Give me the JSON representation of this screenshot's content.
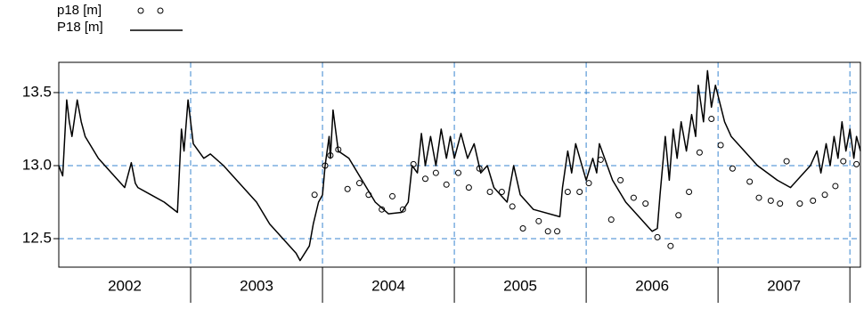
{
  "chart_data": {
    "type": "line",
    "xlim": [
      2002,
      2008.08
    ],
    "ylim": [
      12.305,
      13.707
    ],
    "yticks": [
      12.5,
      {
        "value": 13,
        "label": "13.0"
      },
      13.5
    ],
    "xticks": [
      {
        "value": 2002.5,
        "label": "2002"
      },
      {
        "value": 2003.5,
        "label": "2003"
      },
      {
        "value": 2004.5,
        "label": "2004"
      },
      {
        "value": 2005.5,
        "label": "2005"
      },
      {
        "value": 2006.5,
        "label": "2006"
      },
      {
        "value": 2007.5,
        "label": "2007"
      }
    ],
    "xgrid": [
      2003,
      2004,
      2005,
      2006,
      2007,
      2008
    ],
    "grid": true,
    "grid_color": "#3a86d0",
    "series": [
      {
        "name": "p18 [m]",
        "type": "scatter",
        "color": "#000000",
        "x": [
          2003.94,
          2004.02,
          2004.06,
          2004.12,
          2004.19,
          2004.28,
          2004.35,
          2004.45,
          2004.53,
          2004.61,
          2004.69,
          2004.78,
          2004.86,
          2004.94,
          2005.03,
          2005.11,
          2005.19,
          2005.27,
          2005.36,
          2005.44,
          2005.52,
          2005.64,
          2005.71,
          2005.78,
          2005.86,
          2005.95,
          2006.02,
          2006.11,
          2006.19,
          2006.26,
          2006.36,
          2006.45,
          2006.54,
          2006.64,
          2006.7,
          2006.78,
          2006.86,
          2006.95,
          2007.02,
          2007.11,
          2007.24,
          2007.31,
          2007.4,
          2007.47,
          2007.52,
          2007.62,
          2007.72,
          2007.81,
          2007.89,
          2007.95,
          2008.05
        ],
        "values": [
          12.8,
          13.0,
          13.07,
          13.11,
          12.84,
          12.88,
          12.8,
          12.7,
          12.79,
          12.7,
          13.01,
          12.91,
          12.95,
          12.87,
          12.95,
          12.85,
          12.98,
          12.82,
          12.82,
          12.72,
          12.57,
          12.62,
          12.55,
          12.55,
          12.82,
          12.82,
          12.88,
          13.04,
          12.63,
          12.9,
          12.78,
          12.74,
          12.51,
          12.45,
          12.66,
          12.82,
          13.09,
          13.32,
          13.14,
          12.98,
          12.89,
          12.78,
          12.76,
          12.74,
          13.03,
          12.74,
          12.76,
          12.8,
          12.86,
          13.03,
          13.01
        ]
      },
      {
        "name": "P18 [m]",
        "type": "line",
        "color": "#000000",
        "x": [
          2002.0,
          2002.03,
          2002.06,
          2002.08,
          2002.1,
          2002.14,
          2002.17,
          2002.2,
          2002.3,
          2002.4,
          2002.5,
          2002.55,
          2002.58,
          2002.6,
          2002.7,
          2002.8,
          2002.9,
          2002.93,
          2002.95,
          2002.98,
          2003.02,
          2003.1,
          2003.15,
          2003.25,
          2003.4,
          2003.5,
          2003.6,
          2003.7,
          2003.8,
          2003.83,
          2003.9,
          2003.93,
          2003.97,
          2004.0,
          2004.02,
          2004.05,
          2004.06,
          2004.08,
          2004.12,
          2004.2,
          2004.3,
          2004.4,
          2004.5,
          2004.6,
          2004.65,
          2004.68,
          2004.72,
          2004.75,
          2004.78,
          2004.82,
          2004.86,
          2004.9,
          2004.94,
          2004.97,
          2005.0,
          2005.05,
          2005.1,
          2005.15,
          2005.2,
          2005.25,
          2005.3,
          2005.4,
          2005.45,
          2005.5,
          2005.6,
          2005.8,
          2005.82,
          2005.86,
          2005.89,
          2005.92,
          2006.0,
          2006.05,
          2006.08,
          2006.1,
          2006.2,
          2006.3,
          2006.4,
          2006.5,
          2006.54,
          2006.56,
          2006.6,
          2006.63,
          2006.66,
          2006.69,
          2006.72,
          2006.76,
          2006.8,
          2006.83,
          2006.85,
          2006.89,
          2006.92,
          2006.95,
          2006.98,
          2007.05,
          2007.1,
          2007.2,
          2007.3,
          2007.45,
          2007.55,
          2007.65,
          2007.7,
          2007.75,
          2007.78,
          2007.82,
          2007.85,
          2007.88,
          2007.91,
          2007.94,
          2007.97,
          2008.0,
          2008.03,
          2008.05,
          2008.08
        ],
        "values": [
          13.0,
          12.93,
          13.45,
          13.3,
          13.2,
          13.45,
          13.3,
          13.2,
          13.05,
          12.95,
          12.85,
          13.02,
          12.88,
          12.85,
          12.8,
          12.75,
          12.68,
          13.25,
          13.1,
          13.45,
          13.15,
          13.05,
          13.08,
          13.0,
          12.85,
          12.75,
          12.6,
          12.5,
          12.4,
          12.35,
          12.45,
          12.6,
          12.75,
          12.8,
          13.0,
          13.2,
          13.05,
          13.38,
          13.1,
          13.05,
          12.9,
          12.75,
          12.67,
          12.68,
          12.75,
          13.0,
          12.95,
          13.22,
          13.0,
          13.2,
          13.0,
          13.25,
          13.05,
          13.2,
          13.05,
          13.22,
          13.05,
          13.15,
          12.95,
          13.0,
          12.85,
          12.75,
          13.0,
          12.8,
          12.7,
          12.65,
          12.85,
          13.1,
          12.95,
          13.15,
          12.9,
          13.05,
          12.95,
          13.15,
          12.9,
          12.75,
          12.65,
          12.55,
          12.57,
          12.8,
          13.2,
          12.9,
          13.25,
          13.05,
          13.3,
          13.1,
          13.35,
          13.2,
          13.55,
          13.3,
          13.65,
          13.4,
          13.55,
          13.3,
          13.2,
          13.1,
          13.0,
          12.9,
          12.85,
          12.95,
          13.0,
          13.1,
          12.95,
          13.15,
          13.0,
          13.2,
          13.05,
          13.3,
          13.1,
          13.25,
          13.05,
          13.2,
          13.1
        ]
      }
    ]
  }
}
